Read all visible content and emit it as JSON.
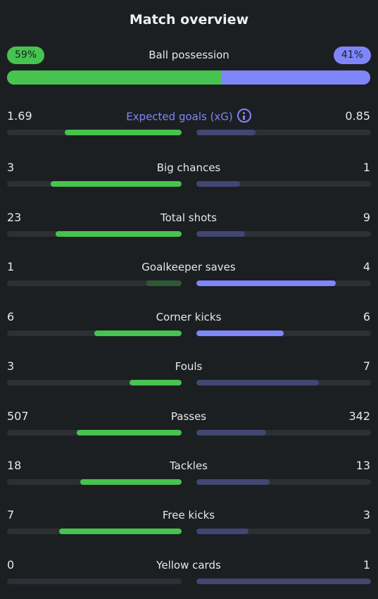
{
  "title": "Match overview",
  "possession": {
    "label": "Ball possession",
    "home": "59%",
    "away": "41%",
    "home_fraction": 0.59
  },
  "stats": [
    {
      "name": "xg",
      "label": "Expected goals (xG)",
      "home": "1.69",
      "away": "0.85",
      "home_fraction": 0.67,
      "away_fraction": 0.34,
      "home_strong": true,
      "away_strong": false,
      "info": true
    },
    {
      "name": "big-chances",
      "label": "Big chances",
      "home": "3",
      "away": "1",
      "home_fraction": 0.75,
      "away_fraction": 0.25,
      "home_strong": true,
      "away_strong": false
    },
    {
      "name": "total-shots",
      "label": "Total shots",
      "home": "23",
      "away": "9",
      "home_fraction": 0.72,
      "away_fraction": 0.28,
      "home_strong": true,
      "away_strong": false
    },
    {
      "name": "goalkeeper-saves",
      "label": "Goalkeeper saves",
      "home": "1",
      "away": "4",
      "home_fraction": 0.2,
      "away_fraction": 0.8,
      "home_strong": false,
      "away_strong": true
    },
    {
      "name": "corner-kicks",
      "label": "Corner kicks",
      "home": "6",
      "away": "6",
      "home_fraction": 0.5,
      "away_fraction": 0.5,
      "home_strong": true,
      "away_strong": true
    },
    {
      "name": "fouls",
      "label": "Fouls",
      "home": "3",
      "away": "7",
      "home_fraction": 0.3,
      "away_fraction": 0.7,
      "home_strong": true,
      "away_strong": false
    },
    {
      "name": "passes",
      "label": "Passes",
      "home": "507",
      "away": "342",
      "home_fraction": 0.6,
      "away_fraction": 0.4,
      "home_strong": true,
      "away_strong": false
    },
    {
      "name": "tackles",
      "label": "Tackles",
      "home": "18",
      "away": "13",
      "home_fraction": 0.58,
      "away_fraction": 0.42,
      "home_strong": true,
      "away_strong": false
    },
    {
      "name": "free-kicks",
      "label": "Free kicks",
      "home": "7",
      "away": "3",
      "home_fraction": 0.7,
      "away_fraction": 0.3,
      "home_strong": true,
      "away_strong": false
    },
    {
      "name": "yellow-cards",
      "label": "Yellow cards",
      "home": "0",
      "away": "1",
      "home_fraction": 0.0,
      "away_fraction": 1.0,
      "home_strong": true,
      "away_strong": false
    }
  ],
  "colors": {
    "home": "#47c34f",
    "away": "#7f86f9",
    "background": "#1c1f22"
  }
}
